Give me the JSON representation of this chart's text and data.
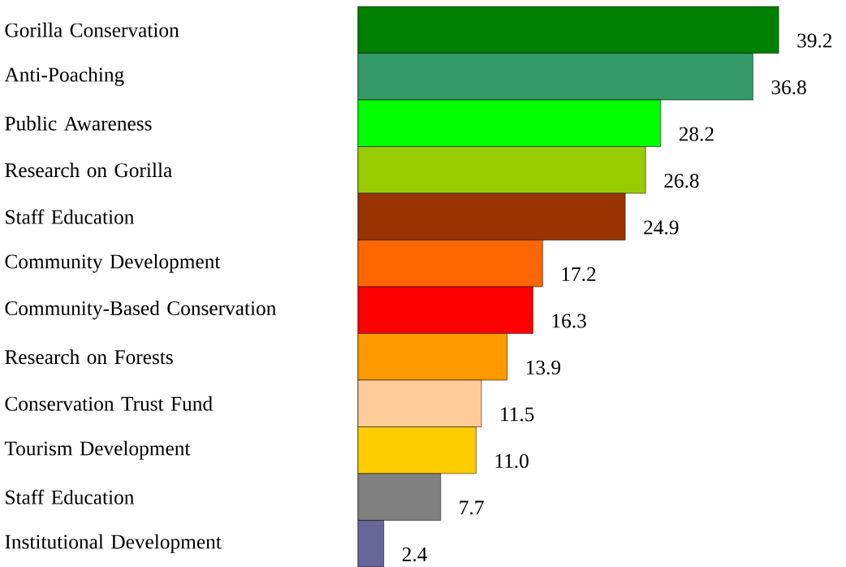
{
  "chart_data": {
    "type": "bar",
    "orientation": "horizontal",
    "value_labels": [
      "39.2",
      "36.8",
      "28.2",
      "26.8",
      "24.9",
      "17.2",
      "16.3",
      "13.9",
      "11.5",
      "11.0",
      "7.7",
      "2.4"
    ],
    "categories": [
      "Gorilla Conservation",
      "Anti-Poaching",
      "Public Awareness",
      "Research on Gorilla",
      "Staff Education",
      "Community Development",
      "Community-Based Conservation",
      "Research on Forests",
      "Conservation Trust Fund",
      "Tourism Development",
      "Staff Education",
      "Institutional Development"
    ],
    "values": [
      39.2,
      36.8,
      28.2,
      26.8,
      24.9,
      17.2,
      16.3,
      13.9,
      11.5,
      11.0,
      7.7,
      2.4
    ],
    "colors": [
      "#008000",
      "#339966",
      "#00ff00",
      "#99cc00",
      "#993300",
      "#ff6600",
      "#ff0000",
      "#ff9900",
      "#ffcc99",
      "#ffcc00",
      "#808080",
      "#666699"
    ]
  }
}
